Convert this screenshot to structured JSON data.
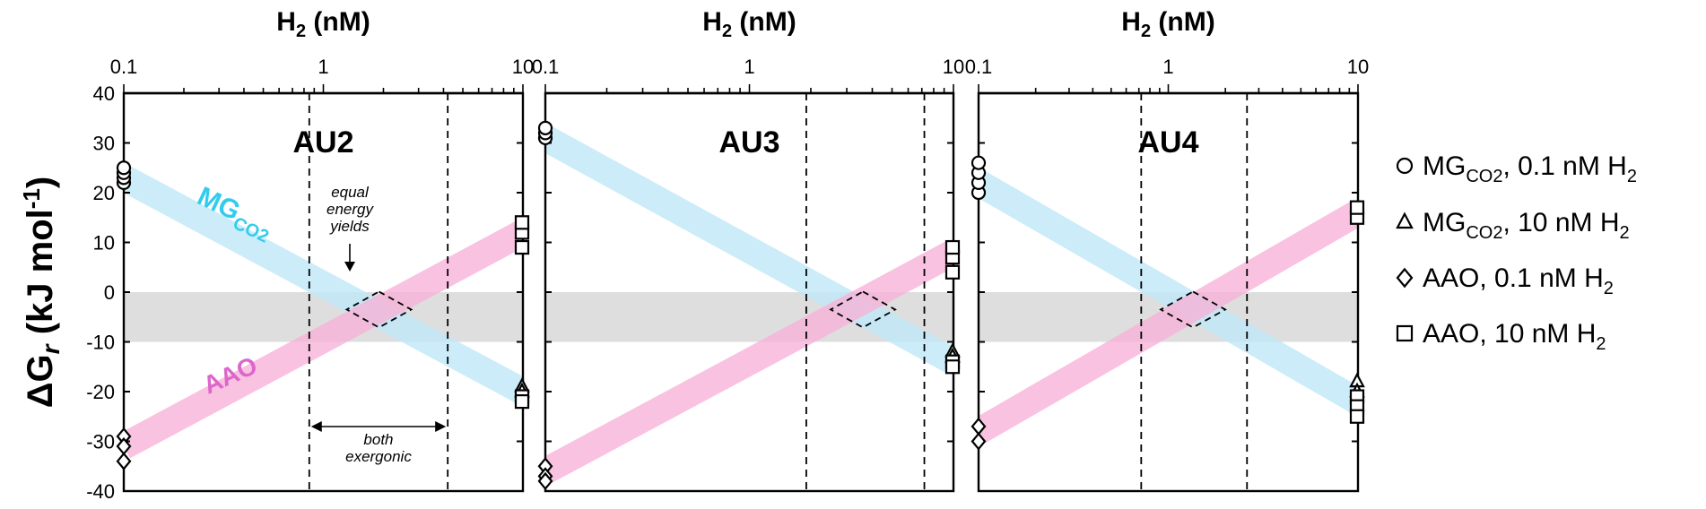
{
  "chart_data": {
    "type": "line",
    "ylabel": "ΔG",
    "ylabel_sub": "r",
    "ylabel_units": " (kJ mol",
    "ylabel_exp": "-1",
    "ylabel_close": ")",
    "ylim": [
      -40,
      40
    ],
    "y_ticks": [
      40,
      30,
      20,
      10,
      0,
      -10,
      -20,
      -30,
      -40
    ],
    "xscale": "log",
    "xlim": [
      0.1,
      10
    ],
    "x_ticks": [
      0.1,
      1,
      10
    ],
    "x_tick_labels": [
      "0.1",
      "1",
      "10"
    ],
    "x_title_main": "H",
    "x_title_sub": "2",
    "x_title_rest": " (nM)",
    "shaded_band": [
      -10,
      0
    ],
    "colors": {
      "mg_band": "#bfe8f7",
      "aao_band": "#f8b3d9",
      "mg_text": "#33ccee",
      "aao_text": "#dd66cc",
      "grey_band": "#dedede"
    },
    "panels": [
      {
        "title": "AU2",
        "series": [
          {
            "name": "MG",
            "name_sub": "CO2",
            "x": [
              0.1,
              10
            ],
            "y": [
              23,
              -20
            ]
          },
          {
            "name": "AAO",
            "x": [
              0.1,
              10
            ],
            "y": [
              -31,
              12
            ]
          }
        ],
        "vlines": [
          0.85,
          4.2
        ],
        "diamond": {
          "x": 1.9,
          "y": -3.5
        },
        "markers": [
          {
            "symbol": "circle",
            "x": 0.1,
            "y": [
              22,
              23,
              24,
              25
            ]
          },
          {
            "symbol": "triangle",
            "x": 10,
            "y": [
              -19,
              -20
            ]
          },
          {
            "symbol": "diamond",
            "x": 0.1,
            "y": [
              -29,
              -31,
              -34
            ]
          },
          {
            "symbol": "square",
            "x": 10,
            "y": [
              9,
              12,
              14,
              -21,
              -22
            ]
          }
        ],
        "annotations": {
          "band_label_mg": "MG",
          "band_label_mg_sub": "CO2",
          "band_label_aao": "AAO",
          "equal_lines": [
            "equal",
            "energy",
            "yields"
          ],
          "both_lines": [
            "both",
            "exergonic"
          ]
        }
      },
      {
        "title": "AU3",
        "series": [
          {
            "name": "MG",
            "name_sub": "CO2",
            "x": [
              0.1,
              10
            ],
            "y": [
              31,
              -14
            ]
          },
          {
            "name": "AAO",
            "x": [
              0.1,
              10
            ],
            "y": [
              -36,
              8
            ]
          }
        ],
        "vlines": [
          1.9,
          7.2
        ],
        "diamond": {
          "x": 3.6,
          "y": -3.5
        },
        "markers": [
          {
            "symbol": "circle",
            "x": 0.1,
            "y": [
              31,
              32,
              33
            ]
          },
          {
            "symbol": "triangle",
            "x": 10,
            "y": [
              -12,
              -13
            ]
          },
          {
            "symbol": "diamond",
            "x": 0.1,
            "y": [
              -35,
              -37,
              -38
            ]
          },
          {
            "symbol": "square",
            "x": 10,
            "y": [
              4,
              7,
              9,
              -14,
              -15
            ]
          }
        ]
      },
      {
        "title": "AU4",
        "series": [
          {
            "name": "MG",
            "name_sub": "CO2",
            "x": [
              0.1,
              10
            ],
            "y": [
              22,
              -22
            ]
          },
          {
            "name": "AAO",
            "x": [
              0.1,
              10
            ],
            "y": [
              -28,
              16
            ]
          }
        ],
        "vlines": [
          0.72,
          2.6
        ],
        "diamond": {
          "x": 1.35,
          "y": -3.5
        },
        "markers": [
          {
            "symbol": "circle",
            "x": 0.1,
            "y": [
              20,
              22,
              24,
              26
            ]
          },
          {
            "symbol": "triangle",
            "x": 10,
            "y": [
              -18,
              -20
            ]
          },
          {
            "symbol": "diamond",
            "x": 0.1,
            "y": [
              -27,
              -30
            ]
          },
          {
            "symbol": "square",
            "x": 10,
            "y": [
              15,
              17,
              -21,
              -23,
              -25
            ]
          }
        ]
      }
    ],
    "legend": [
      {
        "symbol": "circle",
        "label_a": "MG",
        "label_sub": "CO2",
        "label_b": ", 0.1 nM H",
        "label_sub2": "2"
      },
      {
        "symbol": "triangle",
        "label_a": "MG",
        "label_sub": "CO2",
        "label_b": ", 10 nM H",
        "label_sub2": "2"
      },
      {
        "symbol": "diamond",
        "label_a": "AAO",
        "label_sub": "",
        "label_b": ", 0.1 nM H",
        "label_sub2": "2"
      },
      {
        "symbol": "square",
        "label_a": "AAO",
        "label_sub": "",
        "label_b": ", 10 nM H",
        "label_sub2": "2"
      }
    ]
  }
}
